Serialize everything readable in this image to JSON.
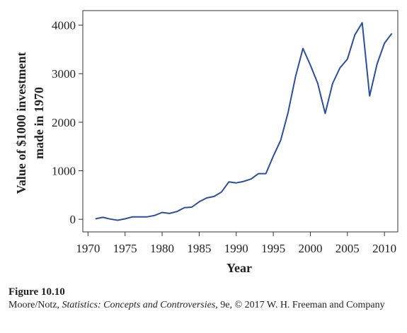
{
  "chart_data": {
    "type": "line",
    "title": "",
    "xlabel": "Year",
    "ylabel_lines": [
      "Value of $1000 investment",
      "made in 1970"
    ],
    "xlim": [
      1969.3,
      2011.8
    ],
    "ylim": [
      -260,
      4300
    ],
    "xticks": [
      1970,
      1975,
      1980,
      1985,
      1990,
      1995,
      2000,
      2005,
      2010
    ],
    "yticks": [
      0,
      1000,
      2000,
      3000,
      4000
    ],
    "grid": false,
    "line_color": "#2b4f9c",
    "series": [
      {
        "x": [
          1971,
          1972,
          1973,
          1974,
          1975,
          1976,
          1977,
          1978,
          1979,
          1980,
          1981,
          1982,
          1983,
          1984,
          1985,
          1986,
          1987,
          1988,
          1989,
          1990,
          1991,
          1992,
          1993,
          1994,
          1995,
          1996,
          1997,
          1998,
          1999,
          2000,
          2001,
          2002,
          2003,
          2004,
          2005,
          2006,
          2007,
          2008,
          2009,
          2010,
          2011
        ],
        "values": [
          10,
          40,
          5,
          -20,
          10,
          50,
          50,
          50,
          80,
          140,
          120,
          160,
          240,
          250,
          360,
          440,
          470,
          560,
          770,
          750,
          780,
          830,
          940,
          940,
          1300,
          1630,
          2200,
          2940,
          3520,
          3180,
          2800,
          2180,
          2800,
          3120,
          3300,
          3800,
          4050,
          2540,
          3200,
          3630,
          3830
        ]
      }
    ]
  },
  "caption": {
    "figure": "Figure 10.10",
    "credit_prefix": "Moore/Notz, ",
    "credit_book": "Statistics: Concepts and Controversies",
    "credit_suffix": ", 9e, © 2017 W. H. Freeman and Company"
  }
}
